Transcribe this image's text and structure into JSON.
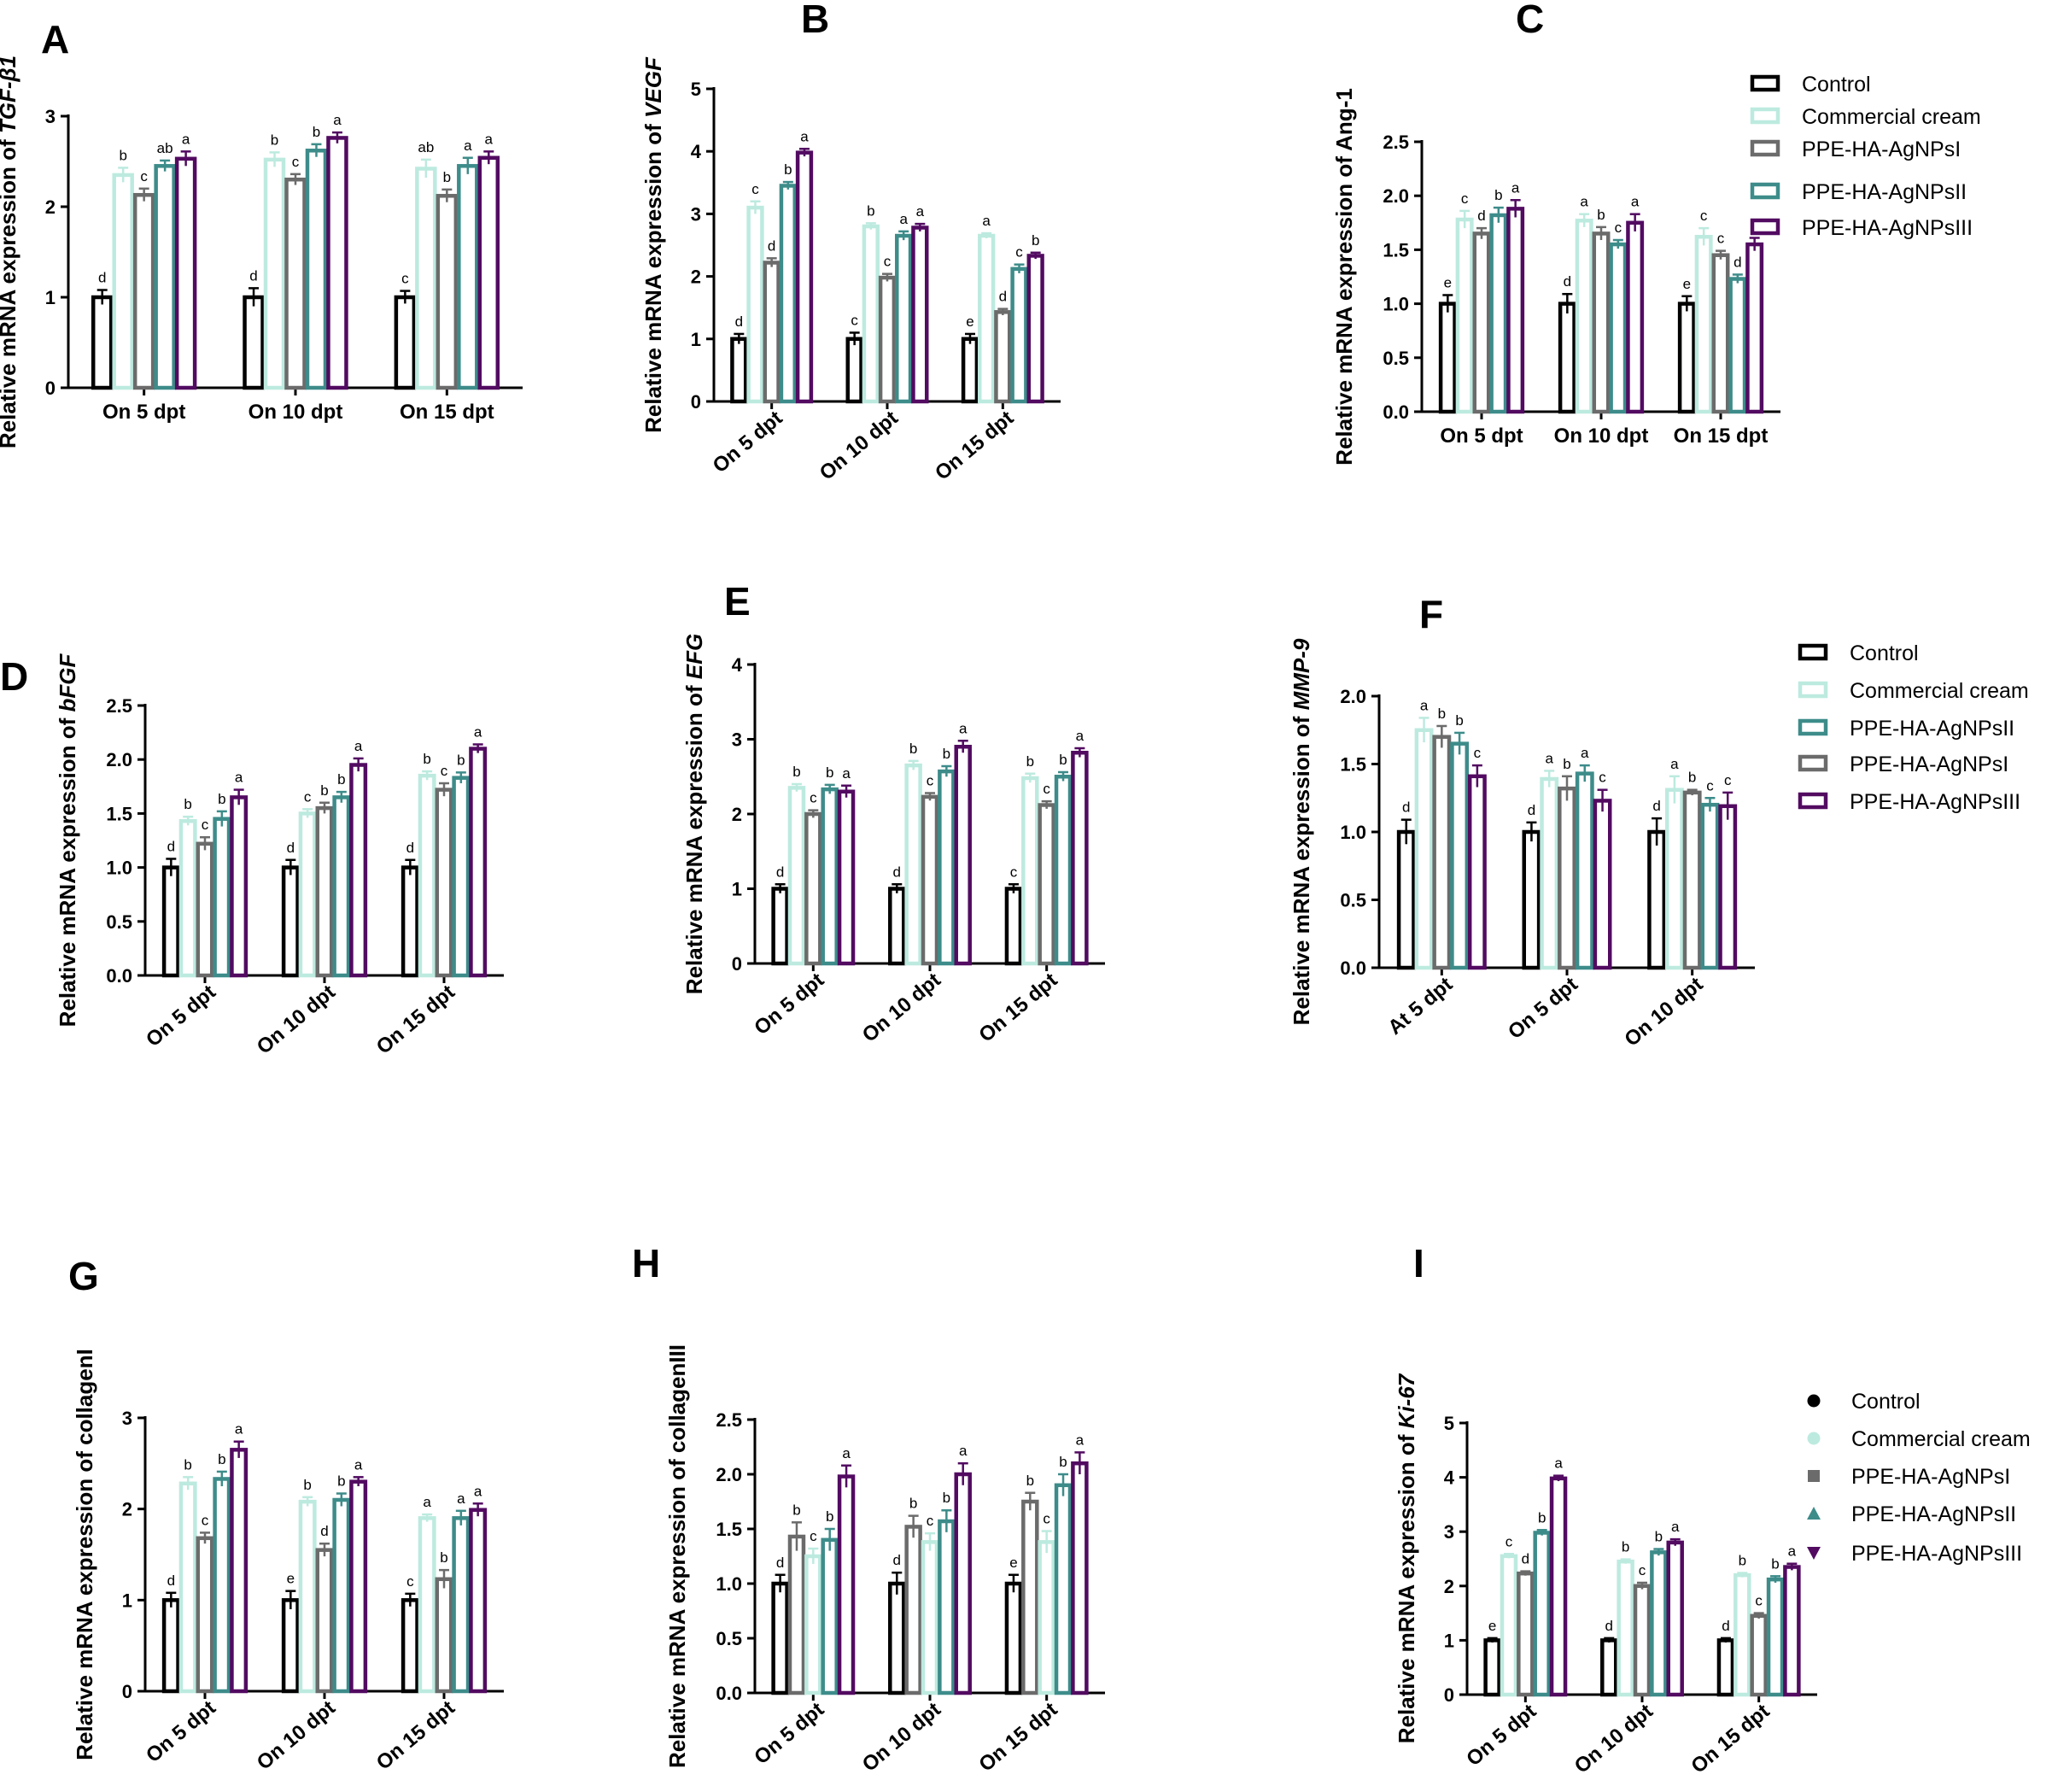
{
  "colors": {
    "Control": "#000000",
    "Commercial cream": "#bdeadf",
    "PPE-HA-AgNPsI": "#6b6b6b",
    "PPE-HA-AgNPsII": "#3d8c8a",
    "PPE-HA-AgNPsIII": "#520b61"
  },
  "legends": [
    {
      "name": "legend-top",
      "marker": "bar",
      "items": [
        "Control",
        "Commercial cream",
        "PPE-HA-AgNPsI",
        "PPE-HA-AgNPsII",
        "PPE-HA-AgNPsIII"
      ]
    },
    {
      "name": "legend-middle",
      "marker": "bar",
      "items": [
        "Control",
        "Commercial cream",
        "PPE-HA-AgNPsII",
        "PPE-HA-AgNPsI",
        "PPE-HA-AgNPsIII"
      ]
    },
    {
      "name": "legend-bottom",
      "marker": "symbol",
      "items": [
        "Control",
        "Commercial cream",
        "PPE-HA-AgNPsI",
        "PPE-HA-AgNPsII",
        "PPE-HA-AgNPsIII"
      ]
    }
  ],
  "chart_data": [
    {
      "panel": "A",
      "type": "bar",
      "ylabel": "Relative mRNA expression of ",
      "ylabel_italic": "TGF-β1",
      "ylim": [
        0,
        3
      ],
      "yticks": [
        "0",
        "1",
        "2",
        "3"
      ],
      "rotate_x": false,
      "categories": [
        "On 5 dpt",
        "On 10 dpt",
        "On 15 dpt"
      ],
      "series_order": [
        "Control",
        "Commercial cream",
        "PPE-HA-AgNPsI",
        "PPE-HA-AgNPsII",
        "PPE-HA-AgNPsIII"
      ],
      "series": [
        {
          "name": "Control",
          "values": [
            1.0,
            1.0,
            1.0
          ],
          "err": [
            0.08,
            0.1,
            0.07
          ],
          "sig": [
            "d",
            "d",
            "c"
          ]
        },
        {
          "name": "Commercial cream",
          "values": [
            2.35,
            2.52,
            2.42
          ],
          "err": [
            0.08,
            0.08,
            0.1
          ],
          "sig": [
            "b",
            "b",
            "ab"
          ]
        },
        {
          "name": "PPE-HA-AgNPsI",
          "values": [
            2.13,
            2.3,
            2.12
          ],
          "err": [
            0.07,
            0.06,
            0.07
          ],
          "sig": [
            "c",
            "c",
            "b"
          ]
        },
        {
          "name": "PPE-HA-AgNPsII",
          "values": [
            2.45,
            2.62,
            2.45
          ],
          "err": [
            0.06,
            0.07,
            0.09
          ],
          "sig": [
            "ab",
            "b",
            "a"
          ]
        },
        {
          "name": "PPE-HA-AgNPsIII",
          "values": [
            2.53,
            2.76,
            2.54
          ],
          "err": [
            0.08,
            0.06,
            0.07
          ],
          "sig": [
            "a",
            "a",
            "a"
          ]
        }
      ]
    },
    {
      "panel": "B",
      "type": "bar",
      "ylabel": "Relative mRNA expression of ",
      "ylabel_italic": "VEGF",
      "ylim": [
        0,
        5
      ],
      "yticks": [
        "0",
        "1",
        "2",
        "3",
        "4",
        "5"
      ],
      "rotate_x": true,
      "categories": [
        "On 5 dpt",
        "On 10 dpt",
        "On 15 dpt"
      ],
      "series_order": [
        "Control",
        "Commercial cream",
        "PPE-HA-AgNPsI",
        "PPE-HA-AgNPsII",
        "PPE-HA-AgNPsIII"
      ],
      "series": [
        {
          "name": "Control",
          "values": [
            1.0,
            1.0,
            1.0
          ],
          "err": [
            0.08,
            0.1,
            0.08
          ],
          "sig": [
            "d",
            "c",
            "e"
          ]
        },
        {
          "name": "Commercial cream",
          "values": [
            3.1,
            2.8,
            2.65
          ],
          "err": [
            0.1,
            0.05,
            0.04
          ],
          "sig": [
            "c",
            "b",
            "a"
          ]
        },
        {
          "name": "PPE-HA-AgNPsI",
          "values": [
            2.22,
            1.98,
            1.43
          ],
          "err": [
            0.07,
            0.06,
            0.05
          ],
          "sig": [
            "d",
            "c",
            "d"
          ]
        },
        {
          "name": "PPE-HA-AgNPsII",
          "values": [
            3.45,
            2.65,
            2.12
          ],
          "err": [
            0.06,
            0.07,
            0.07
          ],
          "sig": [
            "b",
            "a",
            "c"
          ]
        },
        {
          "name": "PPE-HA-AgNPsIII",
          "values": [
            3.98,
            2.78,
            2.33
          ],
          "err": [
            0.06,
            0.06,
            0.05
          ],
          "sig": [
            "a",
            "a",
            "b"
          ]
        }
      ]
    },
    {
      "panel": "C",
      "type": "bar",
      "ylabel": "Relative mRNA expression of Ang-1",
      "ylabel_italic": "",
      "ylim": [
        0,
        2.5
      ],
      "yticks": [
        "0.0",
        "0.5",
        "1.0",
        "1.5",
        "2.0",
        "2.5"
      ],
      "rotate_x": false,
      "categories": [
        "On 5 dpt",
        "On 10 dpt",
        "On 15 dpt"
      ],
      "series_order": [
        "Control",
        "Commercial cream",
        "PPE-HA-AgNPsI",
        "PPE-HA-AgNPsII",
        "PPE-HA-AgNPsIII"
      ],
      "series": [
        {
          "name": "Control",
          "values": [
            1.0,
            1.0,
            1.0
          ],
          "err": [
            0.08,
            0.09,
            0.07
          ],
          "sig": [
            "e",
            "d",
            "e"
          ]
        },
        {
          "name": "Commercial cream",
          "values": [
            1.78,
            1.77,
            1.62
          ],
          "err": [
            0.08,
            0.06,
            0.08
          ],
          "sig": [
            "c",
            "a",
            "c"
          ]
        },
        {
          "name": "PPE-HA-AgNPsI",
          "values": [
            1.65,
            1.65,
            1.45
          ],
          "err": [
            0.05,
            0.06,
            0.04
          ],
          "sig": [
            "d",
            "b",
            "c"
          ]
        },
        {
          "name": "PPE-HA-AgNPsII",
          "values": [
            1.82,
            1.55,
            1.23
          ],
          "err": [
            0.07,
            0.04,
            0.04
          ],
          "sig": [
            "b",
            "c",
            "d"
          ]
        },
        {
          "name": "PPE-HA-AgNPsIII",
          "values": [
            1.88,
            1.75,
            1.55
          ],
          "err": [
            0.08,
            0.08,
            0.06
          ],
          "sig": [
            "a",
            "a",
            "b"
          ]
        }
      ]
    },
    {
      "panel": "D",
      "type": "bar",
      "ylabel": "Relative mRNA expression of ",
      "ylabel_italic": "bFGF",
      "ylim": [
        0,
        2.5
      ],
      "yticks": [
        "0.0",
        "0.5",
        "1.0",
        "1.5",
        "2.0",
        "2.5"
      ],
      "rotate_x": true,
      "categories": [
        "On 5 dpt",
        "On 10 dpt",
        "On 15 dpt"
      ],
      "series_order": [
        "Control",
        "Commercial cream",
        "PPE-HA-AgNPsI",
        "PPE-HA-AgNPsII",
        "PPE-HA-AgNPsIII"
      ],
      "series": [
        {
          "name": "Control",
          "values": [
            1.0,
            1.0,
            1.0
          ],
          "err": [
            0.08,
            0.07,
            0.07
          ],
          "sig": [
            "d",
            "d",
            "d"
          ]
        },
        {
          "name": "Commercial cream",
          "values": [
            1.43,
            1.5,
            1.85
          ],
          "err": [
            0.04,
            0.04,
            0.04
          ],
          "sig": [
            "b",
            "c",
            "b"
          ]
        },
        {
          "name": "PPE-HA-AgNPsI",
          "values": [
            1.22,
            1.55,
            1.72
          ],
          "err": [
            0.06,
            0.05,
            0.06
          ],
          "sig": [
            "c",
            "b",
            "c"
          ]
        },
        {
          "name": "PPE-HA-AgNPsII",
          "values": [
            1.45,
            1.65,
            1.83
          ],
          "err": [
            0.07,
            0.05,
            0.05
          ],
          "sig": [
            "b",
            "b",
            "b"
          ]
        },
        {
          "name": "PPE-HA-AgNPsIII",
          "values": [
            1.65,
            1.95,
            2.1
          ],
          "err": [
            0.07,
            0.06,
            0.04
          ],
          "sig": [
            "a",
            "a",
            "a"
          ]
        }
      ]
    },
    {
      "panel": "E",
      "type": "bar",
      "ylabel": "Relative mRNA expression of ",
      "ylabel_italic": "EFG",
      "ylim": [
        0,
        4
      ],
      "yticks": [
        "0",
        "1",
        "2",
        "3",
        "4"
      ],
      "rotate_x": true,
      "categories": [
        "On 5 dpt",
        "On 10 dpt",
        "On 15 dpt"
      ],
      "series_order": [
        "Control",
        "Commercial cream",
        "PPE-HA-AgNPsI",
        "PPE-HA-AgNPsII",
        "PPE-HA-AgNPsIII"
      ],
      "series": [
        {
          "name": "Control",
          "values": [
            1.0,
            1.0,
            1.0
          ],
          "err": [
            0.06,
            0.06,
            0.06
          ],
          "sig": [
            "d",
            "d",
            "c"
          ]
        },
        {
          "name": "Commercial cream",
          "values": [
            2.35,
            2.65,
            2.48
          ],
          "err": [
            0.05,
            0.06,
            0.06
          ],
          "sig": [
            "b",
            "b",
            "b"
          ]
        },
        {
          "name": "PPE-HA-AgNPsI",
          "values": [
            2.0,
            2.23,
            2.12
          ],
          "err": [
            0.05,
            0.05,
            0.05
          ],
          "sig": [
            "c",
            "c",
            "c"
          ]
        },
        {
          "name": "PPE-HA-AgNPsII",
          "values": [
            2.33,
            2.57,
            2.5
          ],
          "err": [
            0.06,
            0.07,
            0.06
          ],
          "sig": [
            "b",
            "b",
            "b"
          ]
        },
        {
          "name": "PPE-HA-AgNPsIII",
          "values": [
            2.3,
            2.9,
            2.82
          ],
          "err": [
            0.08,
            0.08,
            0.06
          ],
          "sig": [
            "a",
            "a",
            "a"
          ]
        }
      ]
    },
    {
      "panel": "F",
      "type": "bar",
      "ylabel": "Relative mRNA expression of ",
      "ylabel_italic": "MMP-9",
      "ylim": [
        0,
        2.0
      ],
      "yticks": [
        "0.0",
        "0.5",
        "1.0",
        "1.5",
        "2.0"
      ],
      "rotate_x": true,
      "categories": [
        "At 5 dpt",
        "On 5 dpt",
        "On 10 dpt"
      ],
      "series_order": [
        "Control",
        "Commercial cream",
        "PPE-HA-AgNPsI",
        "PPE-HA-AgNPsII",
        "PPE-HA-AgNPsIII"
      ],
      "series": [
        {
          "name": "Control",
          "values": [
            1.0,
            1.0,
            1.0
          ],
          "err": [
            0.09,
            0.07,
            0.1
          ],
          "sig": [
            "d",
            "d",
            "d"
          ]
        },
        {
          "name": "Commercial cream",
          "values": [
            1.75,
            1.39,
            1.31
          ],
          "err": [
            0.09,
            0.06,
            0.1
          ],
          "sig": [
            "a",
            "a",
            "a"
          ]
        },
        {
          "name": "PPE-HA-AgNPsI",
          "values": [
            1.7,
            1.32,
            1.29
          ],
          "err": [
            0.08,
            0.09,
            0.02
          ],
          "sig": [
            "b",
            "b",
            "b"
          ]
        },
        {
          "name": "PPE-HA-AgNPsII",
          "values": [
            1.65,
            1.43,
            1.2
          ],
          "err": [
            0.08,
            0.06,
            0.05
          ],
          "sig": [
            "b",
            "a",
            "c"
          ]
        },
        {
          "name": "PPE-HA-AgNPsIII",
          "values": [
            1.41,
            1.23,
            1.19
          ],
          "err": [
            0.08,
            0.08,
            0.1
          ],
          "sig": [
            "c",
            "c",
            "c"
          ]
        }
      ]
    },
    {
      "panel": "G",
      "type": "bar",
      "ylabel": "Relative mRNA expression of collagenI",
      "ylabel_italic": "",
      "ylim": [
        0,
        3
      ],
      "yticks": [
        "0",
        "1",
        "2",
        "3"
      ],
      "rotate_x": true,
      "categories": [
        "On 5 dpt",
        "On 10 dpt",
        "On 15 dpt"
      ],
      "series_order": [
        "Control",
        "Commercial cream",
        "PPE-HA-AgNPsI",
        "PPE-HA-AgNPsII",
        "PPE-HA-AgNPsIII"
      ],
      "series": [
        {
          "name": "Control",
          "values": [
            1.0,
            1.0,
            1.0
          ],
          "err": [
            0.08,
            0.1,
            0.07
          ],
          "sig": [
            "d",
            "e",
            "c"
          ]
        },
        {
          "name": "Commercial cream",
          "values": [
            2.28,
            2.08,
            1.9
          ],
          "err": [
            0.07,
            0.05,
            0.04
          ],
          "sig": [
            "b",
            "b",
            "a"
          ]
        },
        {
          "name": "PPE-HA-AgNPsI",
          "values": [
            1.68,
            1.55,
            1.23
          ],
          "err": [
            0.06,
            0.07,
            0.1
          ],
          "sig": [
            "c",
            "d",
            "b"
          ]
        },
        {
          "name": "PPE-HA-AgNPsII",
          "values": [
            2.33,
            2.1,
            1.9
          ],
          "err": [
            0.08,
            0.07,
            0.08
          ],
          "sig": [
            "b",
            "b",
            "a"
          ]
        },
        {
          "name": "PPE-HA-AgNPsIII",
          "values": [
            2.65,
            2.3,
            1.99
          ],
          "err": [
            0.09,
            0.05,
            0.07
          ],
          "sig": [
            "a",
            "a",
            "a"
          ]
        }
      ]
    },
    {
      "panel": "H",
      "type": "bar",
      "ylabel": "Relative mRNA expression of collagenIII",
      "ylabel_italic": "",
      "ylim": [
        0,
        2.5
      ],
      "yticks": [
        "0.0",
        "0.5",
        "1.0",
        "1.5",
        "2.0",
        "2.5"
      ],
      "rotate_x": true,
      "categories": [
        "On 5 dpt",
        "On 10 dpt",
        "On 15 dpt"
      ],
      "series_order": [
        "Control",
        "PPE-HA-AgNPsI",
        "Commercial cream",
        "PPE-HA-AgNPsII",
        "PPE-HA-AgNPsIII"
      ],
      "series": [
        {
          "name": "Control",
          "values": [
            1.0,
            1.0,
            1.0
          ],
          "err": [
            0.08,
            0.1,
            0.08
          ],
          "sig": [
            "d",
            "d",
            "e"
          ]
        },
        {
          "name": "PPE-HA-AgNPsI",
          "values": [
            1.43,
            1.52,
            1.75
          ],
          "err": [
            0.13,
            0.1,
            0.08
          ],
          "sig": [
            "b",
            "b",
            "b"
          ]
        },
        {
          "name": "Commercial cream",
          "values": [
            1.25,
            1.38,
            1.38
          ],
          "err": [
            0.07,
            0.08,
            0.1
          ],
          "sig": [
            "c",
            "c",
            "c"
          ]
        },
        {
          "name": "PPE-HA-AgNPsII",
          "values": [
            1.4,
            1.57,
            1.9
          ],
          "err": [
            0.1,
            0.1,
            0.1
          ],
          "sig": [
            "b",
            "b",
            "b"
          ]
        },
        {
          "name": "PPE-HA-AgNPsIII",
          "values": [
            1.98,
            2.0,
            2.1
          ],
          "err": [
            0.1,
            0.1,
            0.1
          ],
          "sig": [
            "a",
            "a",
            "a"
          ]
        }
      ]
    },
    {
      "panel": "I",
      "type": "bar",
      "ylabel": "Relative mRNA expression of ",
      "ylabel_italic": "Ki-67",
      "ylim": [
        0,
        5
      ],
      "yticks": [
        "0",
        "1",
        "2",
        "3",
        "4",
        "5"
      ],
      "rotate_x": true,
      "categories": [
        "On 5 dpt",
        "On 10 dpt",
        "On 15 dpt"
      ],
      "series_order": [
        "Control",
        "Commercial cream",
        "PPE-HA-AgNPsI",
        "PPE-HA-AgNPsII",
        "PPE-HA-AgNPsIII"
      ],
      "series": [
        {
          "name": "Control",
          "values": [
            1.0,
            1.0,
            1.0
          ],
          "err": [
            0.04,
            0.04,
            0.04
          ],
          "sig": [
            "e",
            "d",
            "d"
          ]
        },
        {
          "name": "Commercial cream",
          "values": [
            2.55,
            2.45,
            2.2
          ],
          "err": [
            0.04,
            0.04,
            0.04
          ],
          "sig": [
            "c",
            "b",
            "b"
          ]
        },
        {
          "name": "PPE-HA-AgNPsI",
          "values": [
            2.23,
            2.0,
            1.45
          ],
          "err": [
            0.04,
            0.06,
            0.05
          ],
          "sig": [
            "d",
            "c",
            "c"
          ]
        },
        {
          "name": "PPE-HA-AgNPsII",
          "values": [
            2.98,
            2.62,
            2.12
          ],
          "err": [
            0.05,
            0.06,
            0.06
          ],
          "sig": [
            "b",
            "b",
            "b"
          ]
        },
        {
          "name": "PPE-HA-AgNPsIII",
          "values": [
            3.98,
            2.8,
            2.35
          ],
          "err": [
            0.05,
            0.06,
            0.06
          ],
          "sig": [
            "a",
            "a",
            "a"
          ]
        }
      ]
    }
  ]
}
